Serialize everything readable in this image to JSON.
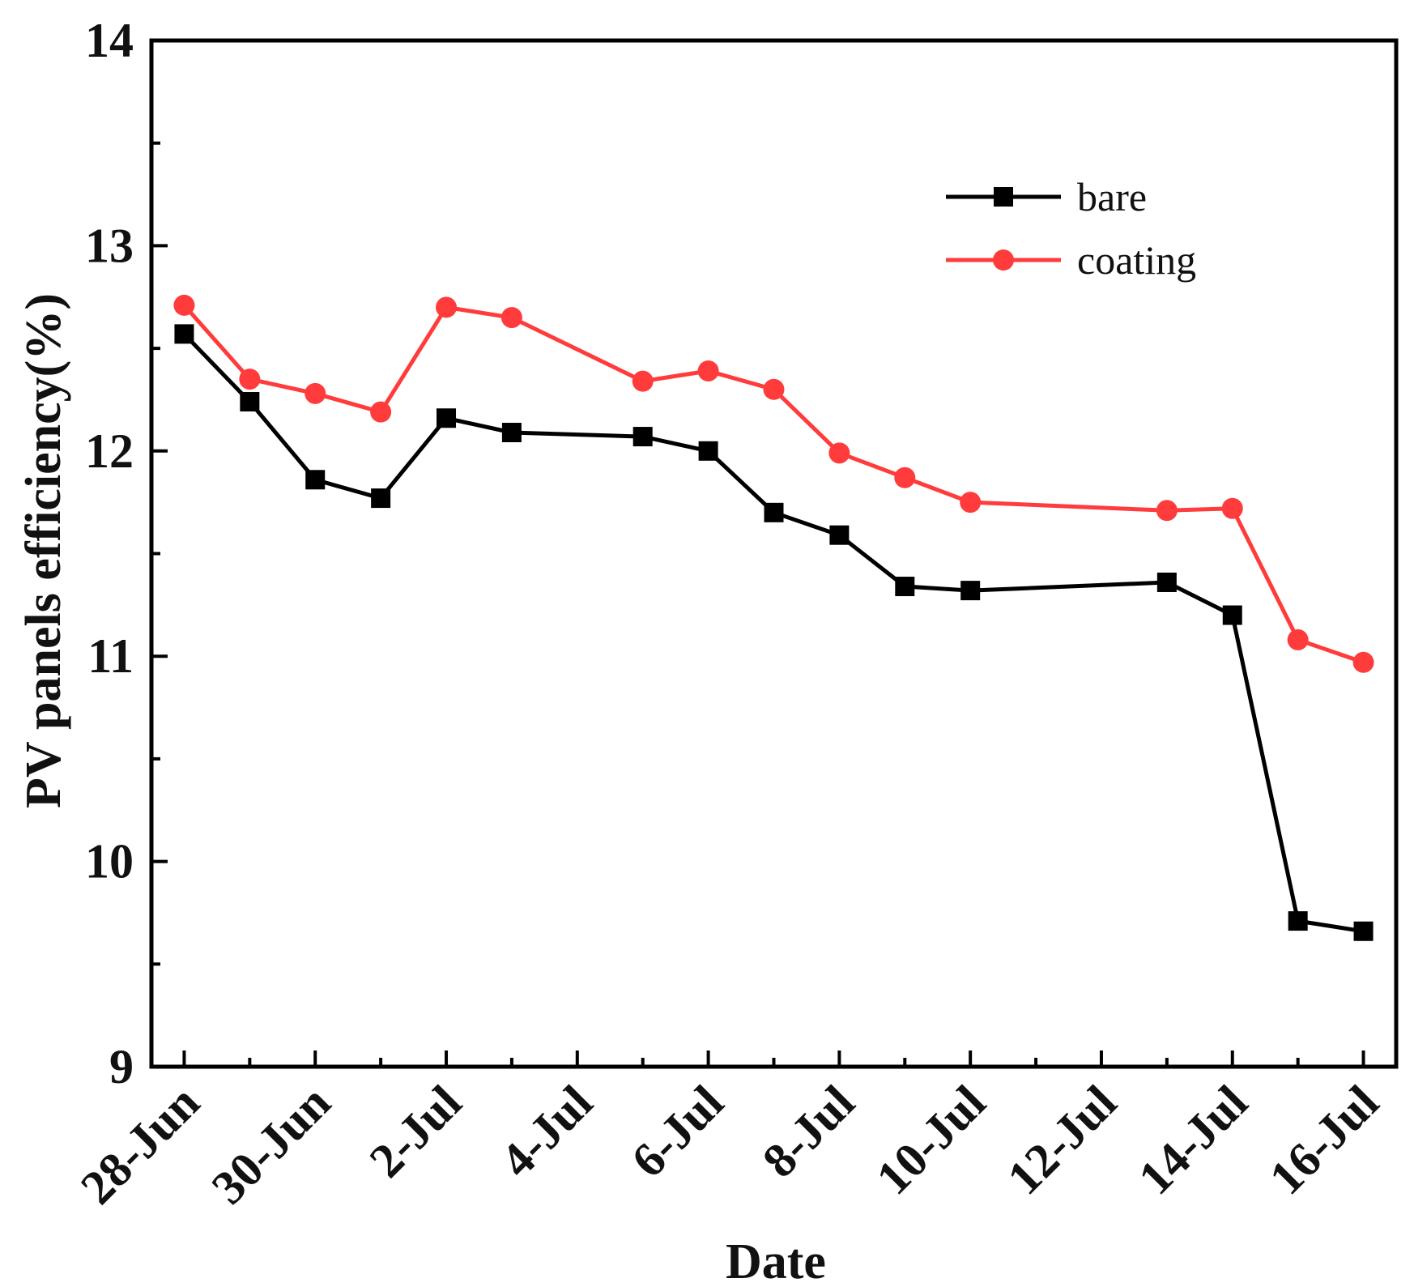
{
  "chart_data": {
    "type": "line",
    "title": "",
    "xlabel": "Date",
    "ylabel": "PV panels efficiency(%)",
    "ylim": [
      9,
      14
    ],
    "xlim": [
      -0.5,
      18.5
    ],
    "yticks": [
      9,
      10,
      11,
      12,
      13,
      14
    ],
    "xticks": [
      {
        "pos": 0,
        "label": "28-Jun"
      },
      {
        "pos": 2,
        "label": "30-Jun"
      },
      {
        "pos": 4,
        "label": "2-Jul"
      },
      {
        "pos": 6,
        "label": "4-Jul"
      },
      {
        "pos": 8,
        "label": "6-Jul"
      },
      {
        "pos": 10,
        "label": "8-Jul"
      },
      {
        "pos": 12,
        "label": "10-Jul"
      },
      {
        "pos": 14,
        "label": "12-Jul"
      },
      {
        "pos": 16,
        "label": "14-Jul"
      },
      {
        "pos": 18,
        "label": "16-Jul"
      }
    ],
    "grid": false,
    "legend_position": "top-right",
    "series": [
      {
        "name": "bare",
        "color": "#000000",
        "marker": "square",
        "x": [
          0,
          1,
          2,
          3,
          4,
          5,
          7,
          8,
          9,
          10,
          11,
          12,
          15,
          16,
          17,
          18
        ],
        "values": [
          12.57,
          12.24,
          11.86,
          11.77,
          12.16,
          12.09,
          12.07,
          12.0,
          11.7,
          11.59,
          11.34,
          11.32,
          11.36,
          11.2,
          9.71,
          9.66
        ]
      },
      {
        "name": "coating",
        "color": "#ff3b3b",
        "marker": "circle",
        "x": [
          0,
          1,
          2,
          3,
          4,
          5,
          7,
          8,
          9,
          10,
          11,
          12,
          15,
          16,
          17,
          18
        ],
        "values": [
          12.71,
          12.35,
          12.28,
          12.19,
          12.7,
          12.65,
          12.34,
          12.39,
          12.3,
          11.99,
          11.87,
          11.75,
          11.71,
          11.72,
          11.08,
          10.97
        ]
      }
    ]
  }
}
